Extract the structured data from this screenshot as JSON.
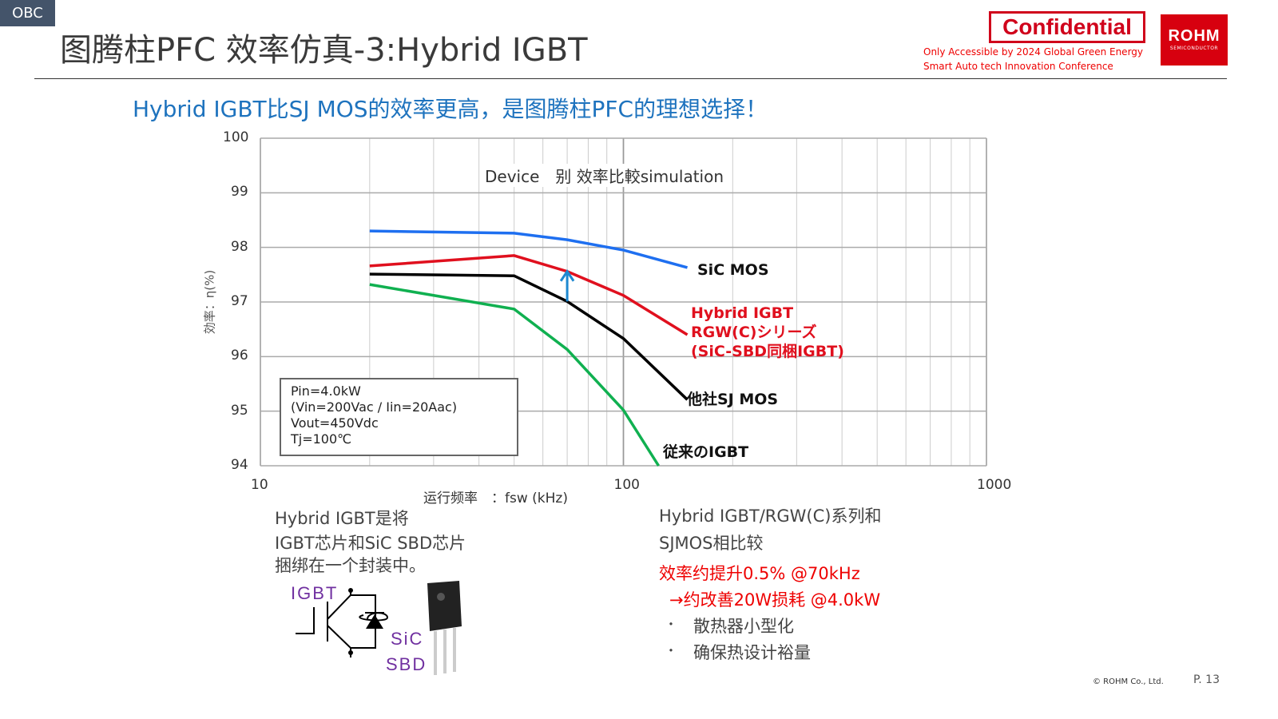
{
  "header": {
    "tag": "OBC",
    "title": "图腾柱PFC  效率仿真-3:Hybrid IGBT",
    "confidential": "Confidential",
    "note_line1": "Only Accessible by 2024 Global Green Energy",
    "note_line2": "Smart Auto tech Innovation Conference",
    "logo_main": "ROHM",
    "logo_sub": "SEMICONDUCTOR"
  },
  "subtitle": "Hybrid IGBT比SJ MOS的效率更高，是图腾柱PFC的理想选择！",
  "chart_data": {
    "type": "line",
    "title": "Device　别 效率比較simulation",
    "xlabel": "运行频率　：fsw (kHz)",
    "ylabel": "効率：η(%)",
    "xscale": "log",
    "xlim": [
      10,
      1000
    ],
    "ylim": [
      94,
      100
    ],
    "xticks": [
      "10",
      "100",
      "1000"
    ],
    "yticks": [
      "94",
      "95",
      "96",
      "97",
      "98",
      "99",
      "100"
    ],
    "grid": true,
    "series": [
      {
        "name": "SiC MOS",
        "color": "#1e6ff0",
        "x": [
          20,
          50,
          70,
          100,
          150
        ],
        "y": [
          98.3,
          98.26,
          98.14,
          97.95,
          97.63
        ]
      },
      {
        "name": "Hybrid IGBT|RGW(C)シリーズ|(SiC-SBD同梱IGBT)",
        "color": "#e0101e",
        "x": [
          20,
          50,
          70,
          100,
          150
        ],
        "y": [
          97.66,
          97.85,
          97.56,
          97.12,
          96.4
        ]
      },
      {
        "name": "他社SJ MOS",
        "color": "#000000",
        "x": [
          20,
          50,
          70,
          100,
          150
        ],
        "y": [
          97.51,
          97.48,
          97.01,
          96.33,
          95.21
        ]
      },
      {
        "name": "従来のIGBT",
        "color": "#10b050",
        "x": [
          20,
          50,
          70,
          100,
          125
        ],
        "y": [
          97.32,
          96.87,
          96.13,
          95.02,
          94.0
        ]
      }
    ],
    "annotation_arrow": {
      "x": 70,
      "from": 97.01,
      "to": 97.56,
      "color": "#1e88d0"
    },
    "conditions": [
      "Pin=4.0kW",
      "(Vin=200Vac / Iin=20Aac)",
      "Vout=450Vdc",
      "Tj=100℃"
    ]
  },
  "left_text": [
    "Hybrid IGBT是将",
    "IGBT芯片和SiC SBD芯片",
    "捆绑在一个封装中。"
  ],
  "diagram": {
    "igbt": "IGBT",
    "sic": "SiC",
    "sbd": "SBD"
  },
  "right_text": {
    "line1": "Hybrid IGBT/RGW(C)系列和",
    "line2": "SJMOS相比较",
    "red1": "效率约提升0.5%  @70kHz",
    "red2": "→约改善20W损耗  @4.0kW",
    "bullet": "・",
    "b1": "散热器小型化",
    "b2": "确保热设计裕量"
  },
  "footer": {
    "copyright": "© ROHM Co., Ltd.",
    "page": "P. 13"
  }
}
